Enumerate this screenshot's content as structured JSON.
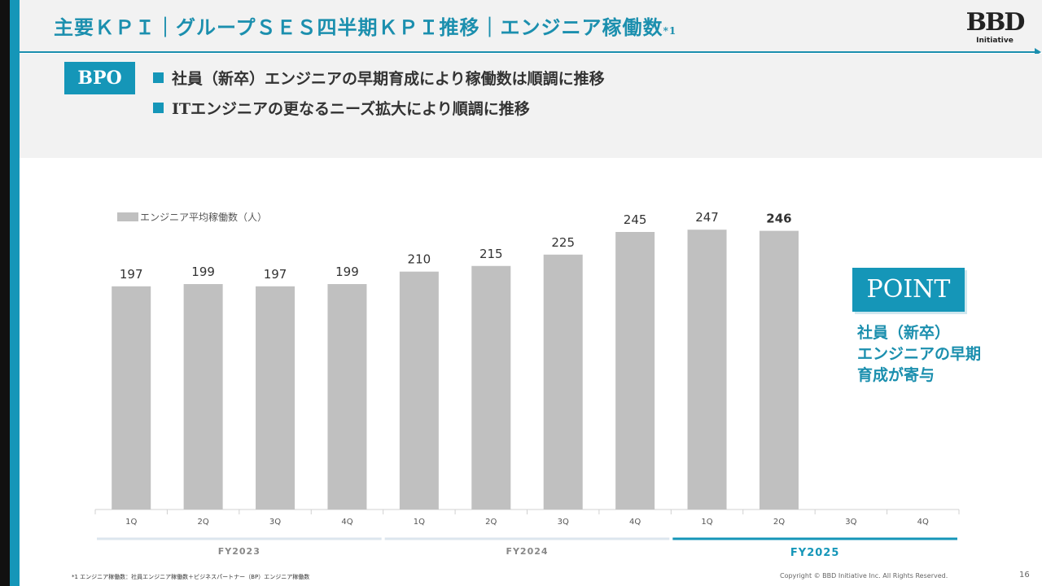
{
  "header": {
    "title": "主要ＫＰＩ｜グループＳＥＳ四半期ＫＰＩ推移｜エンジニア稼働数",
    "title_sup": "*1",
    "logo_mark": "BBD",
    "logo_sub": "Initiative"
  },
  "bpo": {
    "label": "BPO",
    "bullets": [
      "社員（新卒）エンジニアの早期育成により稼働数は順調に推移",
      "ITエンジニアの更なるニーズ拡大により順調に推移"
    ]
  },
  "chart_data": {
    "type": "bar",
    "legend": [
      "エンジニア平均稼働数（人）"
    ],
    "categories": [
      "1Q",
      "2Q",
      "3Q",
      "4Q",
      "1Q",
      "2Q",
      "3Q",
      "4Q",
      "1Q",
      "2Q",
      "3Q",
      "4Q"
    ],
    "groups": [
      {
        "label": "FY2023",
        "category_indices": [
          0,
          1,
          2,
          3
        ]
      },
      {
        "label": "FY2024",
        "category_indices": [
          4,
          5,
          6,
          7
        ]
      },
      {
        "label": "FY2025",
        "category_indices": [
          8,
          9,
          10,
          11
        ],
        "highlight": true
      }
    ],
    "series": [
      {
        "name": "エンジニア平均稼働数（人）",
        "values": [
          197,
          199,
          197,
          199,
          210,
          215,
          225,
          245,
          247,
          246,
          null,
          null
        ]
      }
    ],
    "bold_value_index": 9,
    "colors": {
      "bar": "#c0c0c0",
      "accent": "#1596b8",
      "group_line": "#dce6ee"
    }
  },
  "point": {
    "label": "POINT",
    "lines": [
      "社員（新卒）",
      "エンジニアの早期",
      "育成が寄与"
    ]
  },
  "footer": {
    "footnote": "*1 エンジニア稼働数：社員エンジニア稼働数＋ビジネスパートナー（BP）エンジニア稼働数",
    "copyright": "Copyright © BBD Initiative Inc. All Rights Reserved.",
    "page": "16"
  }
}
